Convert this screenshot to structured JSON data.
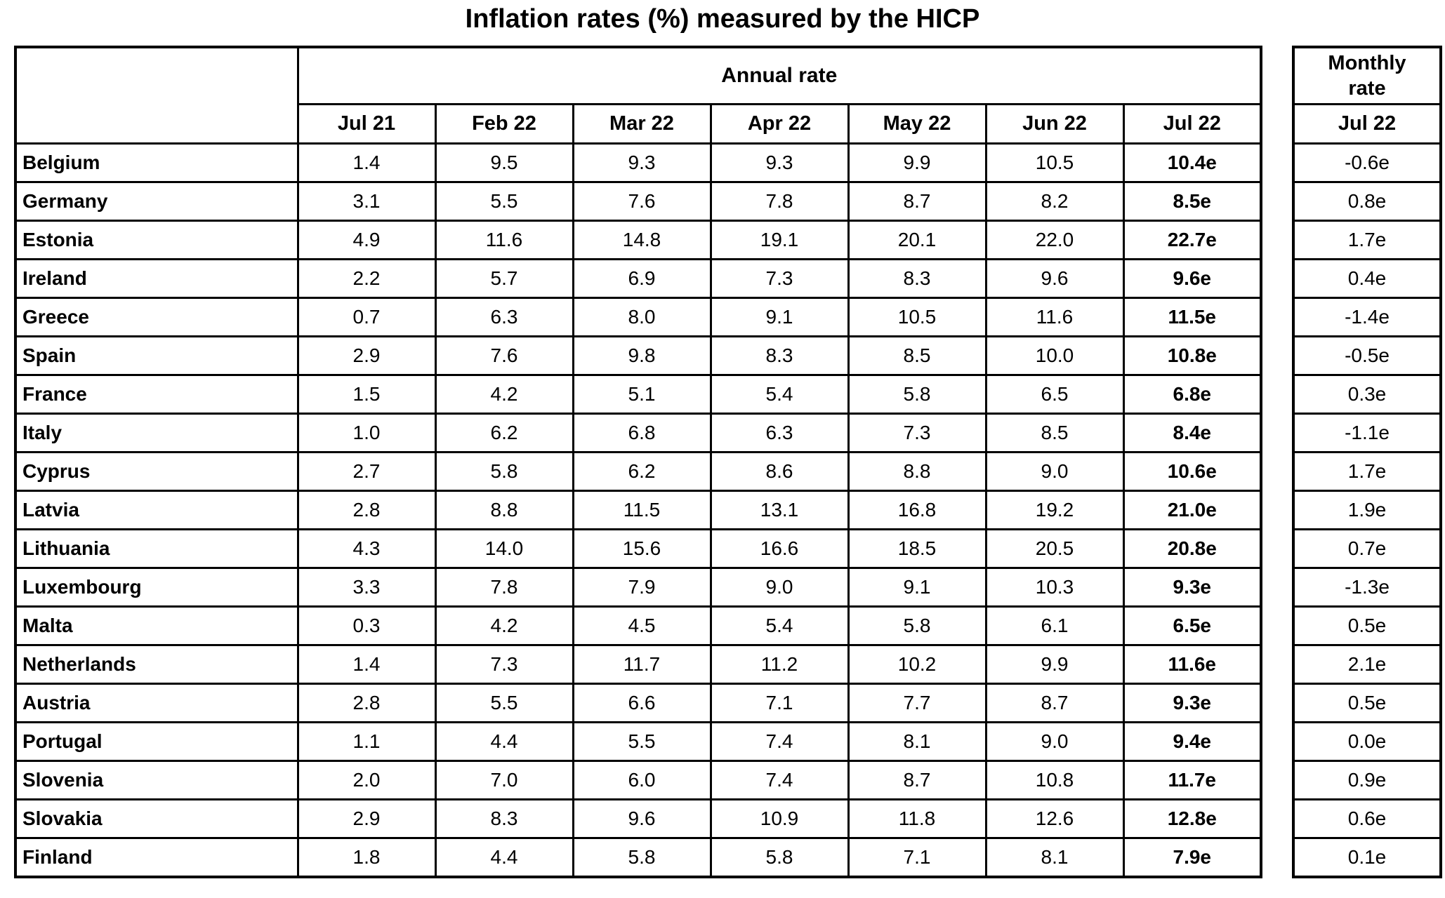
{
  "title": "Inflation rates (%) measured by the HICP",
  "chart_data": {
    "type": "table",
    "title": "Inflation rates (%) measured by the HICP",
    "annual_group_header": "Annual rate",
    "monthly_group_header": "Monthly rate",
    "annual_columns": [
      "Jul 21",
      "Feb 22",
      "Mar 22",
      "Apr 22",
      "May 22",
      "Jun 22",
      "Jul 22"
    ],
    "monthly_column": "Jul 22",
    "rows": [
      {
        "country": "Belgium",
        "annual": [
          "1.4",
          "9.5",
          "9.3",
          "9.3",
          "9.9",
          "10.5",
          "10.4e"
        ],
        "monthly": "-0.6e"
      },
      {
        "country": "Germany",
        "annual": [
          "3.1",
          "5.5",
          "7.6",
          "7.8",
          "8.7",
          "8.2",
          "8.5e"
        ],
        "monthly": "0.8e"
      },
      {
        "country": "Estonia",
        "annual": [
          "4.9",
          "11.6",
          "14.8",
          "19.1",
          "20.1",
          "22.0",
          "22.7e"
        ],
        "monthly": "1.7e"
      },
      {
        "country": "Ireland",
        "annual": [
          "2.2",
          "5.7",
          "6.9",
          "7.3",
          "8.3",
          "9.6",
          "9.6e"
        ],
        "monthly": "0.4e"
      },
      {
        "country": "Greece",
        "annual": [
          "0.7",
          "6.3",
          "8.0",
          "9.1",
          "10.5",
          "11.6",
          "11.5e"
        ],
        "monthly": "-1.4e"
      },
      {
        "country": "Spain",
        "annual": [
          "2.9",
          "7.6",
          "9.8",
          "8.3",
          "8.5",
          "10.0",
          "10.8e"
        ],
        "monthly": "-0.5e"
      },
      {
        "country": "France",
        "annual": [
          "1.5",
          "4.2",
          "5.1",
          "5.4",
          "5.8",
          "6.5",
          "6.8e"
        ],
        "monthly": "0.3e"
      },
      {
        "country": "Italy",
        "annual": [
          "1.0",
          "6.2",
          "6.8",
          "6.3",
          "7.3",
          "8.5",
          "8.4e"
        ],
        "monthly": "-1.1e"
      },
      {
        "country": "Cyprus",
        "annual": [
          "2.7",
          "5.8",
          "6.2",
          "8.6",
          "8.8",
          "9.0",
          "10.6e"
        ],
        "monthly": "1.7e"
      },
      {
        "country": "Latvia",
        "annual": [
          "2.8",
          "8.8",
          "11.5",
          "13.1",
          "16.8",
          "19.2",
          "21.0e"
        ],
        "monthly": "1.9e"
      },
      {
        "country": "Lithuania",
        "annual": [
          "4.3",
          "14.0",
          "15.6",
          "16.6",
          "18.5",
          "20.5",
          "20.8e"
        ],
        "monthly": "0.7e"
      },
      {
        "country": "Luxembourg",
        "annual": [
          "3.3",
          "7.8",
          "7.9",
          "9.0",
          "9.1",
          "10.3",
          "9.3e"
        ],
        "monthly": "-1.3e"
      },
      {
        "country": "Malta",
        "annual": [
          "0.3",
          "4.2",
          "4.5",
          "5.4",
          "5.8",
          "6.1",
          "6.5e"
        ],
        "monthly": "0.5e"
      },
      {
        "country": "Netherlands",
        "annual": [
          "1.4",
          "7.3",
          "11.7",
          "11.2",
          "10.2",
          "9.9",
          "11.6e"
        ],
        "monthly": "2.1e"
      },
      {
        "country": "Austria",
        "annual": [
          "2.8",
          "5.5",
          "6.6",
          "7.1",
          "7.7",
          "8.7",
          "9.3e"
        ],
        "monthly": "0.5e"
      },
      {
        "country": "Portugal",
        "annual": [
          "1.1",
          "4.4",
          "5.5",
          "7.4",
          "8.1",
          "9.0",
          "9.4e"
        ],
        "monthly": "0.0e"
      },
      {
        "country": "Slovenia",
        "annual": [
          "2.0",
          "7.0",
          "6.0",
          "7.4",
          "8.7",
          "10.8",
          "11.7e"
        ],
        "monthly": "0.9e"
      },
      {
        "country": "Slovakia",
        "annual": [
          "2.9",
          "8.3",
          "9.6",
          "10.9",
          "11.8",
          "12.6",
          "12.8e"
        ],
        "monthly": "0.6e"
      },
      {
        "country": "Finland",
        "annual": [
          "1.8",
          "4.4",
          "5.8",
          "5.8",
          "7.1",
          "8.1",
          "7.9e"
        ],
        "monthly": "0.1e"
      }
    ]
  }
}
